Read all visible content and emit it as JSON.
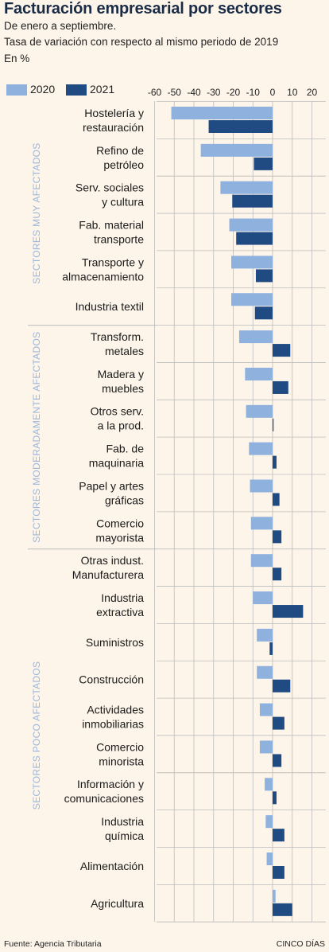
{
  "title": "Facturación empresarial por sectores",
  "subtitle1": "De enero a septiembre.",
  "subtitle2": "Tasa de variación con respecto al mismo periodo de 2019",
  "unit": "En %",
  "source": "Fuente: Agencia Tributaria",
  "brand": "CINCO DÍAS",
  "colors": {
    "y2020": "#8fb1de",
    "y2021": "#1f4a82",
    "group": "#9bb6dc",
    "grid": "#bcbcbc"
  },
  "chart_data": {
    "type": "bar",
    "orientation": "horizontal",
    "xlim": [
      -60,
      20
    ],
    "xticks": [
      -60,
      -50,
      -40,
      -30,
      -20,
      -10,
      0,
      10,
      20
    ],
    "grid": true,
    "legend_position": "top-left",
    "series": [
      {
        "name": "2020",
        "values": [
          -51.5,
          -36.5,
          -26.5,
          -22,
          -21,
          -21,
          -17,
          -14,
          -13.5,
          -12,
          -11.5,
          -11,
          -11,
          -10,
          -8,
          -8,
          -6.5,
          -6.5,
          -4,
          -3.5,
          -3,
          1.5
        ]
      },
      {
        "name": "2021",
        "values": [
          -32.5,
          -9.5,
          -20.5,
          -18.5,
          -8.5,
          -9,
          9,
          8,
          0.5,
          2,
          3.5,
          4.5,
          4.5,
          15.5,
          -1.5,
          9,
          6,
          4.5,
          2,
          6,
          6,
          10
        ]
      }
    ],
    "groups": [
      {
        "label": "Sectores muy afectados",
        "start": 0,
        "end": 5
      },
      {
        "label": "Sectores moderadamente afectados",
        "start": 6,
        "end": 11
      },
      {
        "label": "Sectores poco afectados",
        "start": 12,
        "end": 21
      }
    ],
    "categories": [
      [
        "Hostelería y",
        "restauración"
      ],
      [
        "Refino de",
        "petróleo"
      ],
      [
        "Serv. sociales",
        "y cultura"
      ],
      [
        "Fab. material",
        "transporte"
      ],
      [
        "Transporte y",
        "almacenamiento"
      ],
      [
        "Industria textil"
      ],
      [
        "Transform.",
        "metales"
      ],
      [
        "Madera y",
        "muebles"
      ],
      [
        "Otros serv.",
        "a la prod."
      ],
      [
        "Fab. de",
        "maquinaria"
      ],
      [
        "Papel y artes",
        "gráficas"
      ],
      [
        "Comercio",
        "mayorista"
      ],
      [
        "Otras indust.",
        "Manufacturera"
      ],
      [
        "Industria",
        "extractiva"
      ],
      [
        "Suministros"
      ],
      [
        "Construcción"
      ],
      [
        "Actividades",
        "inmobiliarias"
      ],
      [
        "Comercio",
        "minorista"
      ],
      [
        "Información y",
        "comunicaciones"
      ],
      [
        "Industria",
        "química"
      ],
      [
        "Alimentación"
      ],
      [
        "Agricultura"
      ]
    ]
  }
}
